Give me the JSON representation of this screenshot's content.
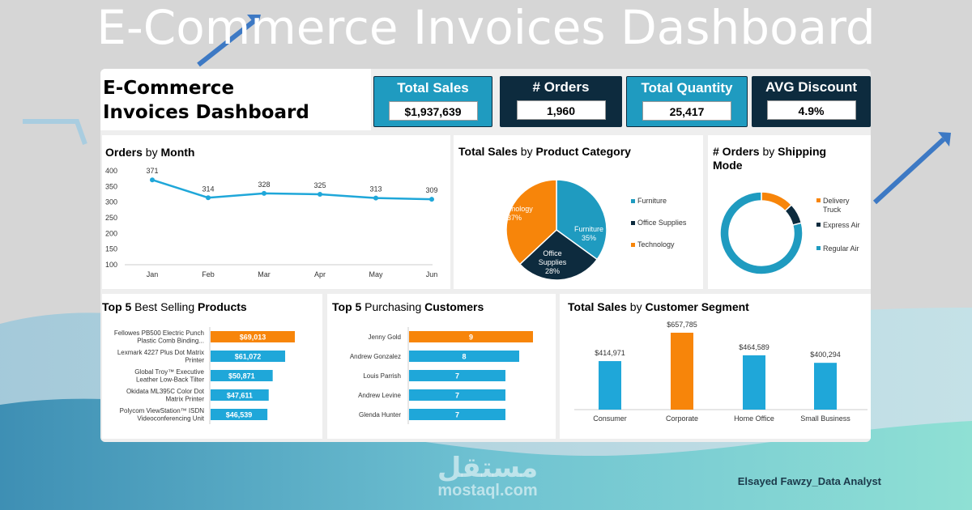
{
  "banner": {
    "title": "E-Commerce Invoices Dashboard"
  },
  "author": "Elsayed Fawzy_Data Analyst",
  "watermark": {
    "arabic": "مستقل",
    "latin": "mostaql.com"
  },
  "dashboard": {
    "title_line1": "E-Commerce",
    "title_line2": "Invoices Dashboard"
  },
  "kpis": [
    {
      "label": "Total Sales",
      "value": "$1,937,639",
      "color": "#1f9bc0"
    },
    {
      "label": "# Orders",
      "value": "1,960",
      "color": "#0d2b3e"
    },
    {
      "label": "Total Quantity",
      "value": "25,417",
      "color": "#1f9bc0"
    },
    {
      "label": "AVG Discount",
      "value": "4.9%",
      "color": "#0d2b3e"
    }
  ],
  "colors": {
    "blue": "#1fa7d9",
    "navy": "#0d2b3e",
    "orange": "#f7850a",
    "teal": "#1f9bc0"
  },
  "chart_data": [
    {
      "type": "line",
      "title_bold1": "Orders",
      "title_light": " by ",
      "title_bold2": "Month",
      "x": [
        "Jan",
        "Feb",
        "Mar",
        "Apr",
        "May",
        "Jun"
      ],
      "values": [
        371,
        314,
        328,
        325,
        313,
        309
      ],
      "yticks": [
        "400",
        "350",
        "300",
        "250",
        "200",
        "150",
        "100"
      ],
      "ylim": [
        100,
        400
      ],
      "grid": false
    },
    {
      "type": "pie",
      "title_bold1": "Total Sales",
      "title_light": " by ",
      "title_bold2": "Product Category",
      "slices": [
        {
          "name": "Furniture",
          "value": 35,
          "label": "35%",
          "color": "#1f9bc0"
        },
        {
          "name": "Office Supplies",
          "value": 28,
          "label": "28%",
          "color": "#0d2b3e"
        },
        {
          "name": "Technology",
          "value": 37,
          "label": "37%",
          "color": "#f7850a"
        }
      ],
      "legend": "right"
    },
    {
      "type": "pie",
      "variant": "donut",
      "title_bold1": "# Orders",
      "title_light": " by ",
      "title_bold2": "Shipping",
      "title_line2": "Mode",
      "slices": [
        {
          "name": "Delivery Truck",
          "value": 13,
          "color": "#f7850a"
        },
        {
          "name": "Express Air",
          "value": 8,
          "color": "#0d2b3e"
        },
        {
          "name": "Regular Air",
          "value": 79,
          "color": "#1f9bc0"
        }
      ],
      "legend": "right"
    },
    {
      "type": "bar",
      "orientation": "horizontal",
      "title_bold1": "Top 5",
      "title_light": " Best Selling ",
      "title_bold2": "Products",
      "categories": [
        "Fellowes PB500 Electric Punch Plastic Comb Binding...",
        "Lexmark 4227 Plus Dot Matrix Printer",
        "Global Troy™ Executive Leather Low-Back Tilter",
        "Okidata ML395C Color Dot Matrix Printer",
        "Polycom ViewStation™ ISDN Videoconferencing Unit"
      ],
      "values": [
        69013,
        61072,
        50871,
        47611,
        46539
      ],
      "labels": [
        "$69,013",
        "$61,072",
        "$50,871",
        "$47,611",
        "$46,539"
      ],
      "highlight": 0
    },
    {
      "type": "bar",
      "orientation": "horizontal",
      "title_bold1": "Top 5",
      "title_light": " Purchasing ",
      "title_bold2": "Customers",
      "categories": [
        "Jenny Gold",
        "Andrew Gonzalez",
        "Louis Parrish",
        "Andrew Levine",
        "Glenda Hunter"
      ],
      "values": [
        9,
        8,
        7,
        7,
        7
      ],
      "labels": [
        "9",
        "8",
        "7",
        "7",
        "7"
      ],
      "highlight": 0
    },
    {
      "type": "bar",
      "title_bold1": "Total Sales",
      "title_light": " by ",
      "title_bold2": "Customer Segment",
      "categories": [
        "Consumer",
        "Corporate",
        "Home Office",
        "Small Business"
      ],
      "values": [
        414971,
        657785,
        464589,
        400294
      ],
      "labels": [
        "$414,971",
        "$657,785",
        "$464,589",
        "$400,294"
      ],
      "highlight": 1
    }
  ]
}
